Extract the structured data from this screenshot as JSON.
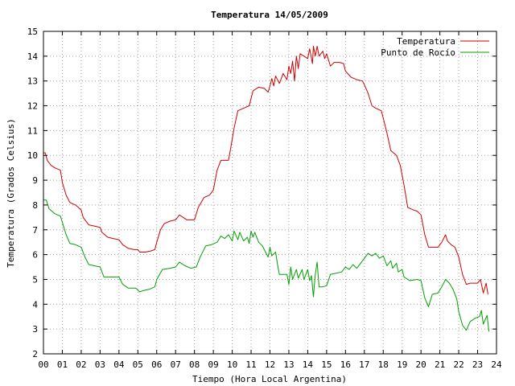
{
  "chart_data": {
    "type": "line",
    "title": "Temperatura 14/05/2009",
    "xlabel": "Tiempo (Hora Local Argentina)",
    "ylabel": "Temperatura (Grados Celsius)",
    "xlim": [
      0,
      24
    ],
    "ylim": [
      2,
      15
    ],
    "xticks": [
      "00",
      "01",
      "02",
      "03",
      "04",
      "05",
      "06",
      "07",
      "08",
      "09",
      "10",
      "11",
      "12",
      "13",
      "14",
      "15",
      "16",
      "17",
      "18",
      "19",
      "20",
      "21",
      "22",
      "23",
      "24"
    ],
    "yticks": [
      2,
      3,
      4,
      5,
      6,
      7,
      8,
      9,
      10,
      11,
      12,
      13,
      14,
      15
    ],
    "grid": true,
    "legend_position": "top-right",
    "series": [
      {
        "name": "Temperatura",
        "color": "#d00000",
        "points": [
          [
            0.0,
            10.1
          ],
          [
            0.1,
            10.1
          ],
          [
            0.2,
            9.8
          ],
          [
            0.4,
            9.6
          ],
          [
            0.6,
            9.5
          ],
          [
            0.9,
            9.4
          ],
          [
            1.0,
            8.9
          ],
          [
            1.2,
            8.4
          ],
          [
            1.4,
            8.1
          ],
          [
            1.7,
            8.0
          ],
          [
            2.0,
            7.8
          ],
          [
            2.1,
            7.5
          ],
          [
            2.4,
            7.2
          ],
          [
            2.7,
            7.15
          ],
          [
            3.0,
            7.1
          ],
          [
            3.1,
            6.9
          ],
          [
            3.4,
            6.7
          ],
          [
            3.7,
            6.65
          ],
          [
            4.0,
            6.6
          ],
          [
            4.2,
            6.4
          ],
          [
            4.5,
            6.25
          ],
          [
            4.8,
            6.2
          ],
          [
            5.0,
            6.2
          ],
          [
            5.1,
            6.1
          ],
          [
            5.4,
            6.1
          ],
          [
            5.7,
            6.15
          ],
          [
            5.9,
            6.2
          ],
          [
            6.0,
            6.5
          ],
          [
            6.2,
            7.0
          ],
          [
            6.4,
            7.25
          ],
          [
            6.7,
            7.35
          ],
          [
            7.0,
            7.4
          ],
          [
            7.2,
            7.6
          ],
          [
            7.4,
            7.5
          ],
          [
            7.6,
            7.4
          ],
          [
            8.0,
            7.4
          ],
          [
            8.2,
            7.9
          ],
          [
            8.5,
            8.3
          ],
          [
            8.8,
            8.4
          ],
          [
            9.0,
            8.6
          ],
          [
            9.2,
            9.4
          ],
          [
            9.4,
            9.8
          ],
          [
            9.8,
            9.8
          ],
          [
            9.9,
            10.2
          ],
          [
            10.1,
            11.1
          ],
          [
            10.3,
            11.8
          ],
          [
            10.6,
            11.9
          ],
          [
            10.9,
            12.0
          ],
          [
            11.1,
            12.6
          ],
          [
            11.4,
            12.75
          ],
          [
            11.7,
            12.7
          ],
          [
            11.9,
            12.55
          ],
          [
            12.0,
            12.8
          ],
          [
            12.1,
            13.1
          ],
          [
            12.2,
            12.8
          ],
          [
            12.3,
            13.2
          ],
          [
            12.5,
            12.9
          ],
          [
            12.7,
            13.3
          ],
          [
            12.9,
            13.05
          ],
          [
            13.0,
            13.6
          ],
          [
            13.1,
            13.3
          ],
          [
            13.2,
            13.8
          ],
          [
            13.3,
            13.0
          ],
          [
            13.4,
            14.0
          ],
          [
            13.5,
            13.5
          ],
          [
            13.6,
            14.1
          ],
          [
            13.8,
            14.0
          ],
          [
            14.0,
            13.9
          ],
          [
            14.1,
            14.3
          ],
          [
            14.25,
            13.7
          ],
          [
            14.3,
            14.4
          ],
          [
            14.4,
            14.0
          ],
          [
            14.5,
            14.4
          ],
          [
            14.6,
            14.0
          ],
          [
            14.8,
            14.2
          ],
          [
            14.9,
            13.9
          ],
          [
            15.0,
            14.1
          ],
          [
            15.2,
            13.6
          ],
          [
            15.4,
            13.75
          ],
          [
            15.7,
            13.75
          ],
          [
            15.9,
            13.7
          ],
          [
            16.0,
            13.4
          ],
          [
            16.3,
            13.15
          ],
          [
            16.6,
            13.05
          ],
          [
            16.9,
            13.0
          ],
          [
            17.0,
            12.85
          ],
          [
            17.2,
            12.5
          ],
          [
            17.4,
            12.0
          ],
          [
            17.6,
            11.9
          ],
          [
            17.9,
            11.8
          ],
          [
            18.0,
            11.5
          ],
          [
            18.2,
            10.9
          ],
          [
            18.4,
            10.2
          ],
          [
            18.7,
            10.0
          ],
          [
            18.9,
            9.6
          ],
          [
            19.1,
            8.8
          ],
          [
            19.3,
            7.9
          ],
          [
            19.6,
            7.8
          ],
          [
            19.8,
            7.75
          ],
          [
            20.0,
            7.6
          ],
          [
            20.2,
            6.8
          ],
          [
            20.4,
            6.3
          ],
          [
            20.9,
            6.3
          ],
          [
            21.1,
            6.5
          ],
          [
            21.3,
            6.8
          ],
          [
            21.4,
            6.55
          ],
          [
            21.6,
            6.4
          ],
          [
            21.8,
            6.3
          ],
          [
            22.0,
            5.9
          ],
          [
            22.2,
            5.2
          ],
          [
            22.4,
            4.8
          ],
          [
            22.6,
            4.85
          ],
          [
            23.0,
            4.85
          ],
          [
            23.15,
            5.0
          ],
          [
            23.3,
            4.45
          ],
          [
            23.45,
            4.85
          ],
          [
            23.55,
            4.4
          ]
        ]
      },
      {
        "name": "Punto de Rocío",
        "color": "#00a000",
        "points": [
          [
            0.0,
            8.2
          ],
          [
            0.15,
            8.2
          ],
          [
            0.3,
            7.85
          ],
          [
            0.6,
            7.65
          ],
          [
            0.9,
            7.55
          ],
          [
            1.0,
            7.3
          ],
          [
            1.2,
            6.8
          ],
          [
            1.4,
            6.45
          ],
          [
            1.7,
            6.4
          ],
          [
            2.0,
            6.3
          ],
          [
            2.2,
            5.9
          ],
          [
            2.4,
            5.6
          ],
          [
            2.7,
            5.55
          ],
          [
            3.0,
            5.5
          ],
          [
            3.2,
            5.1
          ],
          [
            3.6,
            5.1
          ],
          [
            4.0,
            5.1
          ],
          [
            4.2,
            4.8
          ],
          [
            4.5,
            4.65
          ],
          [
            4.9,
            4.65
          ],
          [
            5.1,
            4.5
          ],
          [
            5.3,
            4.55
          ],
          [
            5.6,
            4.6
          ],
          [
            5.9,
            4.7
          ],
          [
            6.0,
            5.0
          ],
          [
            6.3,
            5.4
          ],
          [
            6.7,
            5.45
          ],
          [
            7.0,
            5.5
          ],
          [
            7.2,
            5.7
          ],
          [
            7.5,
            5.55
          ],
          [
            7.8,
            5.45
          ],
          [
            8.1,
            5.5
          ],
          [
            8.3,
            5.9
          ],
          [
            8.6,
            6.35
          ],
          [
            8.9,
            6.4
          ],
          [
            9.2,
            6.5
          ],
          [
            9.4,
            6.75
          ],
          [
            9.6,
            6.65
          ],
          [
            9.8,
            6.8
          ],
          [
            10.0,
            6.55
          ],
          [
            10.1,
            6.95
          ],
          [
            10.3,
            6.6
          ],
          [
            10.4,
            6.9
          ],
          [
            10.6,
            6.55
          ],
          [
            10.8,
            6.7
          ],
          [
            10.9,
            6.45
          ],
          [
            11.0,
            6.95
          ],
          [
            11.1,
            6.7
          ],
          [
            11.2,
            6.9
          ],
          [
            11.4,
            6.5
          ],
          [
            11.6,
            6.35
          ],
          [
            11.8,
            6.05
          ],
          [
            11.9,
            5.9
          ],
          [
            12.0,
            6.3
          ],
          [
            12.1,
            5.95
          ],
          [
            12.3,
            6.1
          ],
          [
            12.4,
            5.6
          ],
          [
            12.5,
            5.2
          ],
          [
            12.9,
            5.2
          ],
          [
            13.0,
            4.8
          ],
          [
            13.1,
            5.5
          ],
          [
            13.2,
            5.0
          ],
          [
            13.4,
            5.4
          ],
          [
            13.5,
            5.05
          ],
          [
            13.7,
            5.4
          ],
          [
            13.8,
            5.0
          ],
          [
            14.0,
            5.4
          ],
          [
            14.1,
            4.95
          ],
          [
            14.2,
            5.15
          ],
          [
            14.3,
            4.3
          ],
          [
            14.4,
            5.2
          ],
          [
            14.5,
            5.7
          ],
          [
            14.6,
            4.7
          ],
          [
            14.8,
            4.7
          ],
          [
            15.0,
            4.75
          ],
          [
            15.2,
            5.2
          ],
          [
            15.5,
            5.25
          ],
          [
            15.8,
            5.3
          ],
          [
            16.0,
            5.5
          ],
          [
            16.2,
            5.4
          ],
          [
            16.4,
            5.6
          ],
          [
            16.6,
            5.45
          ],
          [
            16.8,
            5.65
          ],
          [
            17.0,
            5.85
          ],
          [
            17.2,
            6.05
          ],
          [
            17.4,
            5.95
          ],
          [
            17.6,
            6.05
          ],
          [
            17.8,
            5.85
          ],
          [
            18.0,
            5.95
          ],
          [
            18.2,
            5.55
          ],
          [
            18.4,
            5.75
          ],
          [
            18.5,
            5.45
          ],
          [
            18.7,
            5.65
          ],
          [
            18.8,
            5.3
          ],
          [
            19.0,
            5.4
          ],
          [
            19.1,
            5.1
          ],
          [
            19.4,
            4.95
          ],
          [
            19.8,
            5.0
          ],
          [
            20.0,
            4.95
          ],
          [
            20.2,
            4.25
          ],
          [
            20.4,
            3.9
          ],
          [
            20.6,
            4.4
          ],
          [
            20.9,
            4.45
          ],
          [
            21.1,
            4.7
          ],
          [
            21.3,
            5.0
          ],
          [
            21.5,
            4.85
          ],
          [
            21.7,
            4.6
          ],
          [
            21.9,
            4.2
          ],
          [
            22.0,
            3.7
          ],
          [
            22.2,
            3.15
          ],
          [
            22.4,
            2.95
          ],
          [
            22.6,
            3.3
          ],
          [
            22.9,
            3.45
          ],
          [
            23.1,
            3.5
          ],
          [
            23.2,
            3.75
          ],
          [
            23.3,
            3.2
          ],
          [
            23.5,
            3.55
          ],
          [
            23.6,
            2.9
          ]
        ]
      }
    ]
  }
}
